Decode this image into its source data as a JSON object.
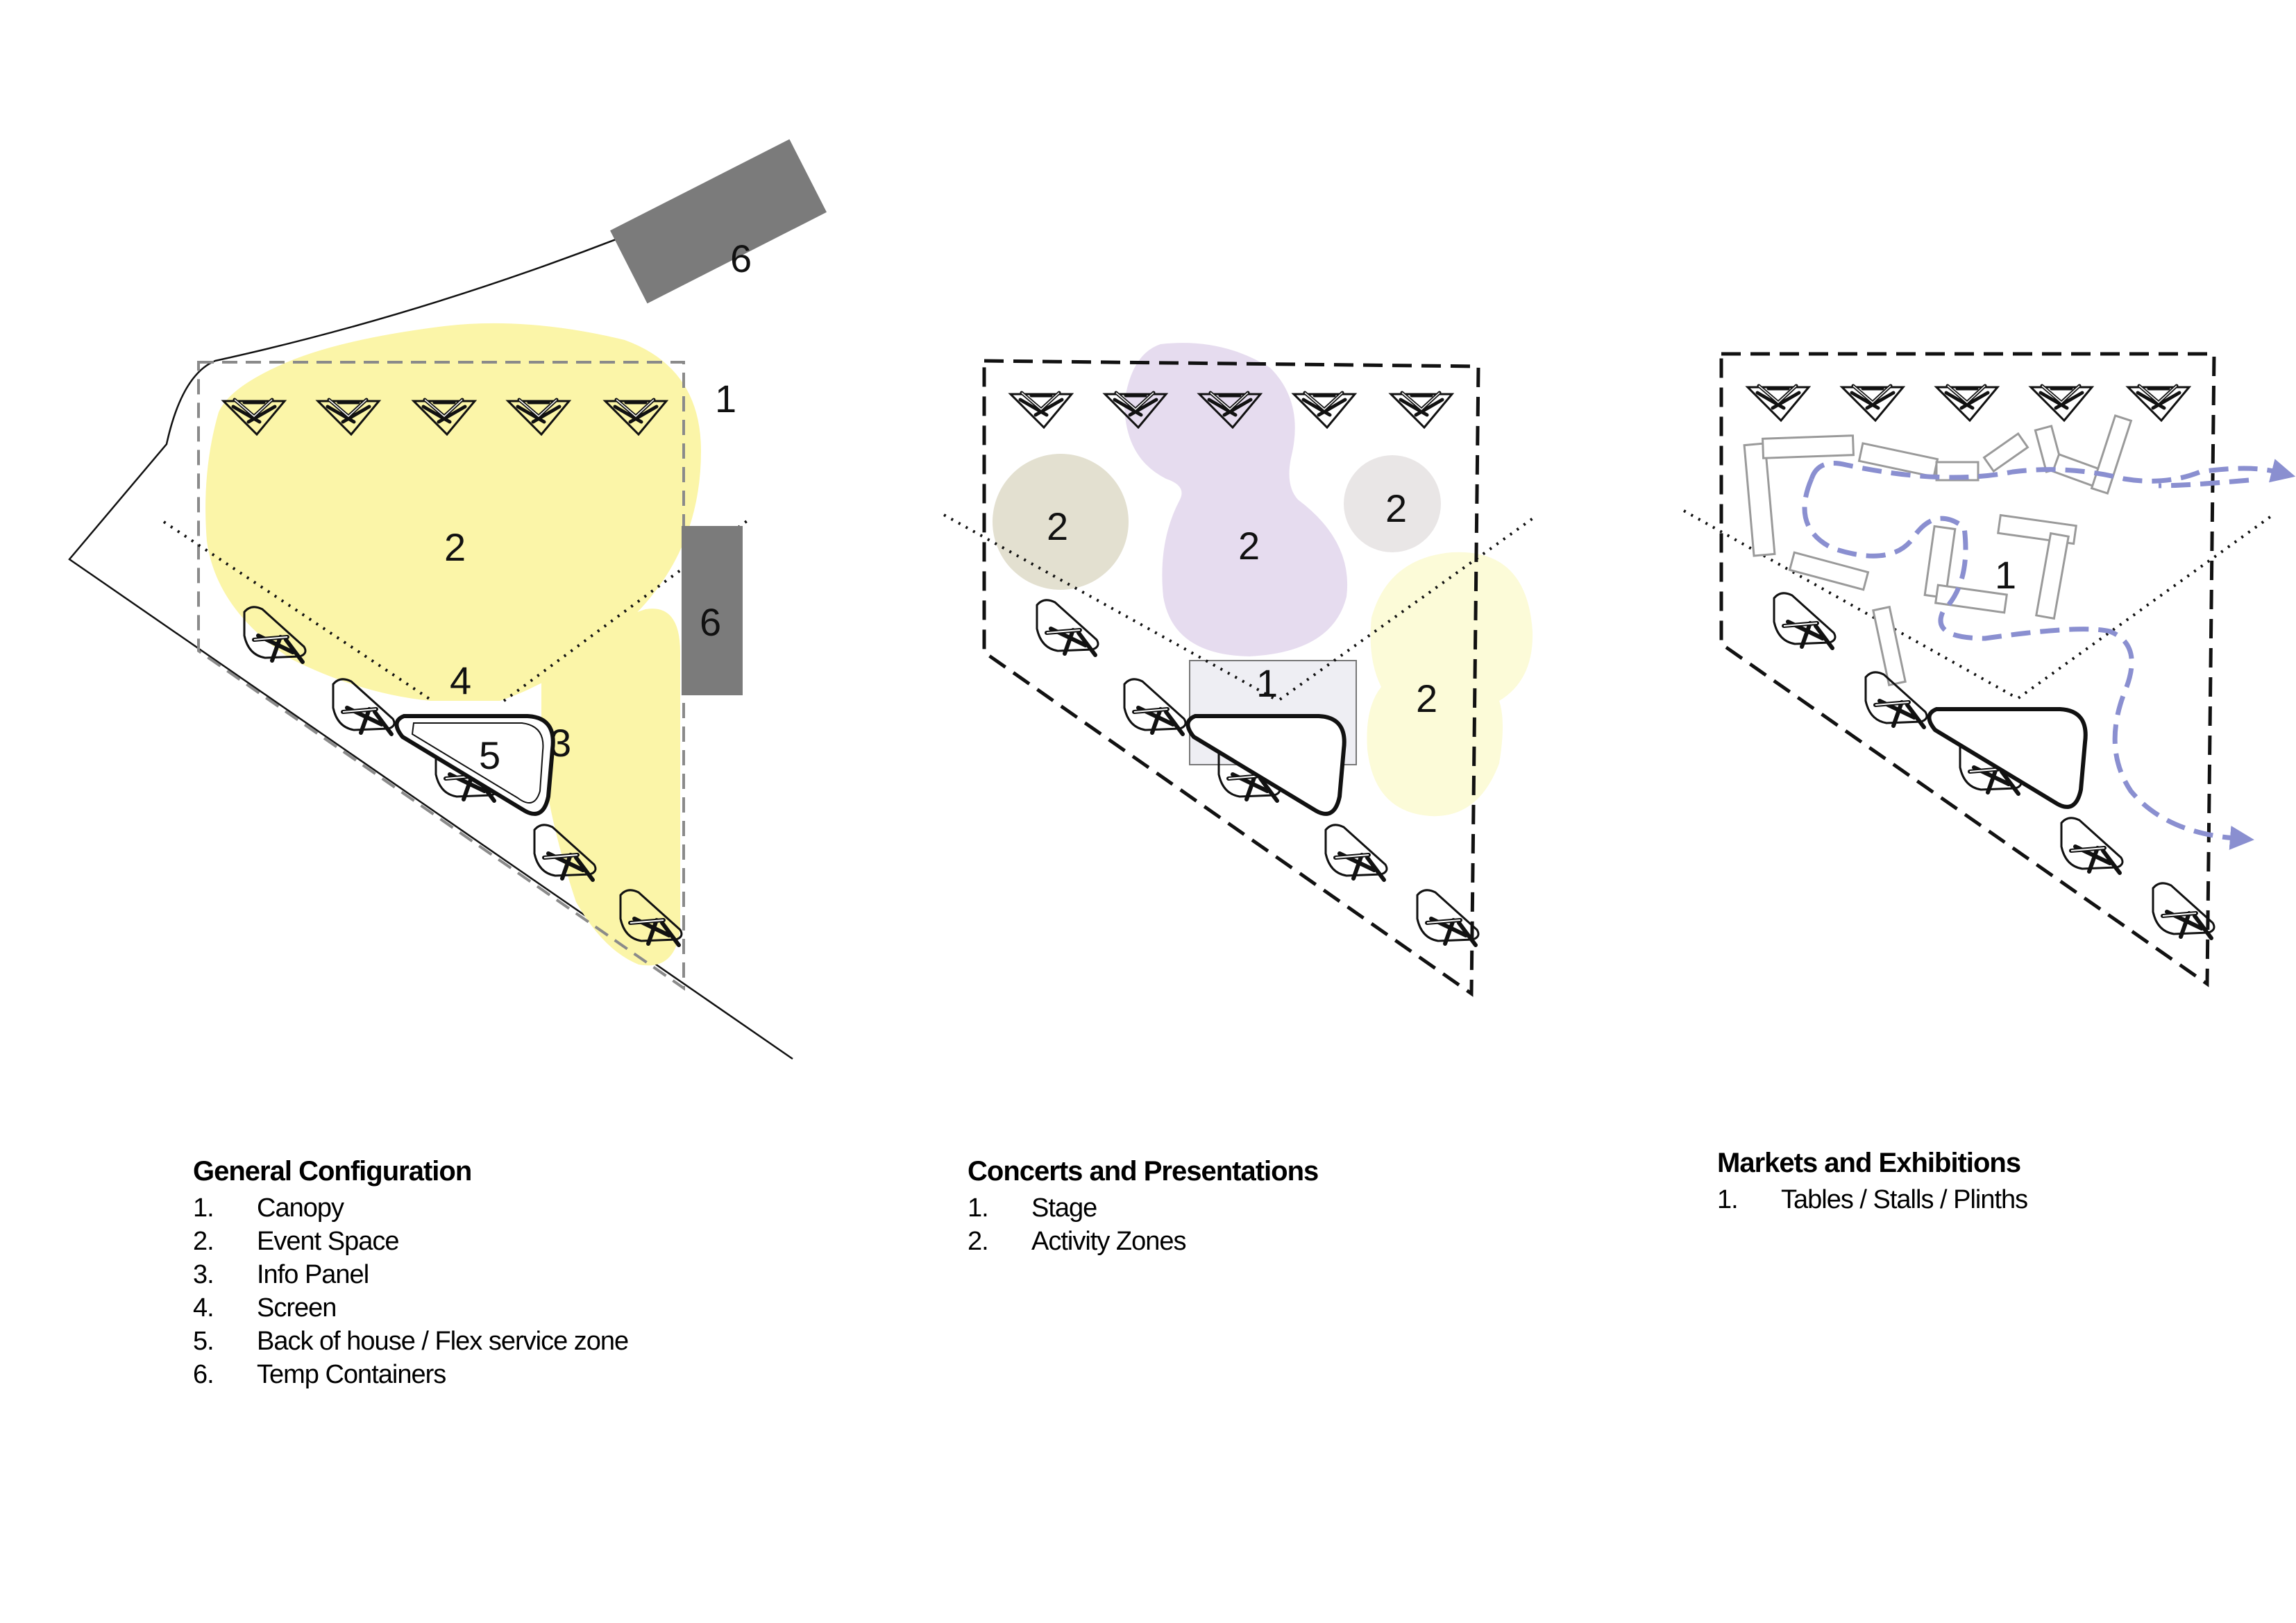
{
  "panels": [
    {
      "id": "general",
      "title": "General Configuration",
      "labels": [
        "1",
        "2",
        "3",
        "4",
        "5",
        "6",
        "6"
      ],
      "legend": [
        {
          "num": "1.",
          "text": "Canopy"
        },
        {
          "num": "2.",
          "text": "Event Space"
        },
        {
          "num": "3.",
          "text": "Info Panel"
        },
        {
          "num": "4.",
          "text": "Screen"
        },
        {
          "num": "5.",
          "text": "Back of house / Flex service zone"
        },
        {
          "num": "6.",
          "text": "Temp Containers"
        }
      ]
    },
    {
      "id": "concerts",
      "title": "Concerts and Presentations",
      "labels": [
        "2",
        "2",
        "2",
        "1",
        "2"
      ],
      "legend": [
        {
          "num": "1.",
          "text": "Stage"
        },
        {
          "num": "2.",
          "text": "Activity Zones"
        }
      ]
    },
    {
      "id": "markets",
      "title": "Markets and Exhibitions",
      "labels": [
        "1"
      ],
      "legend": [
        {
          "num": "1.",
          "text": "Tables / Stalls / Plinths"
        }
      ]
    }
  ],
  "colors": {
    "yellow": "#fbf5a8",
    "purple": "#e6dcef",
    "olive": "#e3e0d0",
    "grey_zone": "#e9e6e6",
    "pale_yellow": "#fcfbd8",
    "stage": "#eeeef3",
    "container": "#7b7b7b",
    "flow": "#8a8fd0",
    "stall_stroke": "#9a9a9a"
  },
  "icons": [
    "canopy-icon",
    "screen-icon",
    "container-icon",
    "flow-arrow-icon",
    "stall-icon"
  ]
}
